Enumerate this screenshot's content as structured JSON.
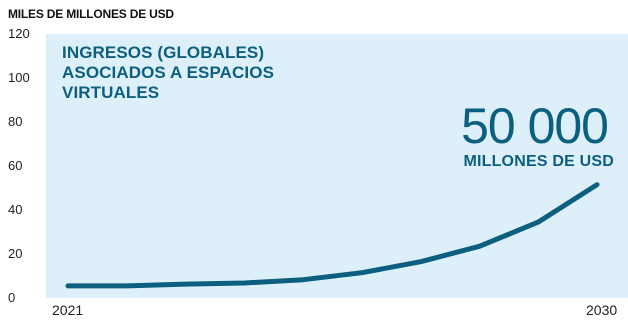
{
  "header": {
    "unit_label": "MILES DE MILLONES DE USD"
  },
  "annotation": {
    "title_lines": [
      "INGRESOS (GLOBALES)",
      "ASOCIADOS A ESPACIOS",
      "VIRTUALES"
    ],
    "big_number": "50 000",
    "big_caption": "MILLONES DE USD"
  },
  "colors": {
    "line": "#0c5f7f",
    "plot_background": "#ddf0f9",
    "text_accent": "#0c5f7f"
  },
  "chart_data": {
    "type": "line",
    "title": "INGRESOS (GLOBALES) ASOCIADOS A ESPACIOS VIRTUALES",
    "ylabel": "MILES DE MILLONES DE USD",
    "ylim": [
      0,
      120
    ],
    "yticks": [
      "0",
      "20",
      "40",
      "60",
      "80",
      "100",
      "120"
    ],
    "xticks": [
      "2021",
      "2030"
    ],
    "x": [
      2021,
      2022,
      2023,
      2024,
      2025,
      2026,
      2027,
      2028,
      2029,
      2030
    ],
    "series": [
      {
        "values": [
          5.5,
          5.5,
          6.3,
          6.8,
          8.3,
          11.5,
          16.5,
          23.5,
          34.5,
          51.5
        ]
      }
    ],
    "grid": false
  }
}
